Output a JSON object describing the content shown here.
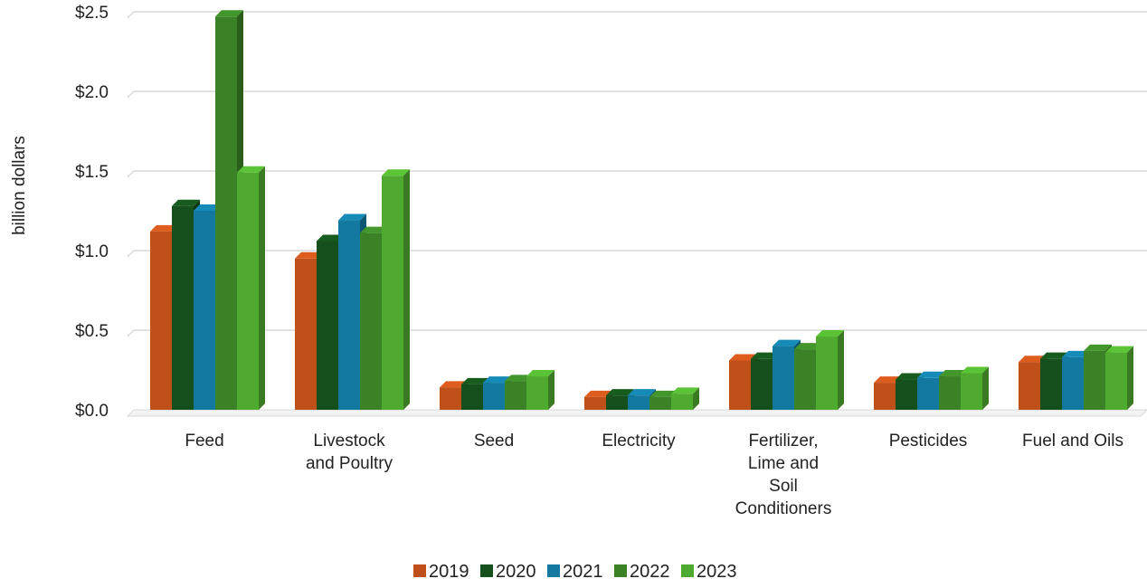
{
  "chart_data": {
    "type": "bar",
    "ylabel": "billion dollars",
    "ylim": [
      0,
      2.5
    ],
    "ytick_values": [
      0,
      0.5,
      1.0,
      1.5,
      2.0,
      2.5
    ],
    "ytick_labels": [
      "$0.0",
      "$0.5",
      "$1.0",
      "$1.5",
      "$2.0",
      "$2.5"
    ],
    "grid": true,
    "legend_position": "bottom",
    "categories": [
      [
        "Feed"
      ],
      [
        "Livestock",
        "and Poultry"
      ],
      [
        "Seed"
      ],
      [
        "Electricity"
      ],
      [
        "Fertilizer,",
        "Lime and",
        "Soil",
        "Conditioners"
      ],
      [
        "Pesticides"
      ],
      [
        "Fuel and Oils"
      ]
    ],
    "series": [
      {
        "name": "2019",
        "color": "#c0501a",
        "values": [
          1.12,
          0.95,
          0.14,
          0.08,
          0.31,
          0.17,
          0.3
        ]
      },
      {
        "name": "2020",
        "color": "#154f1b",
        "values": [
          1.28,
          1.06,
          0.16,
          0.09,
          0.32,
          0.19,
          0.32
        ]
      },
      {
        "name": "2021",
        "color": "#1479a0",
        "values": [
          1.25,
          1.19,
          0.17,
          0.09,
          0.4,
          0.2,
          0.33
        ]
      },
      {
        "name": "2022",
        "color": "#3a8225",
        "values": [
          2.47,
          1.11,
          0.18,
          0.08,
          0.38,
          0.21,
          0.37
        ]
      },
      {
        "name": "2023",
        "color": "#4faa2f",
        "values": [
          1.49,
          1.47,
          0.21,
          0.1,
          0.46,
          0.23,
          0.36
        ]
      }
    ]
  }
}
